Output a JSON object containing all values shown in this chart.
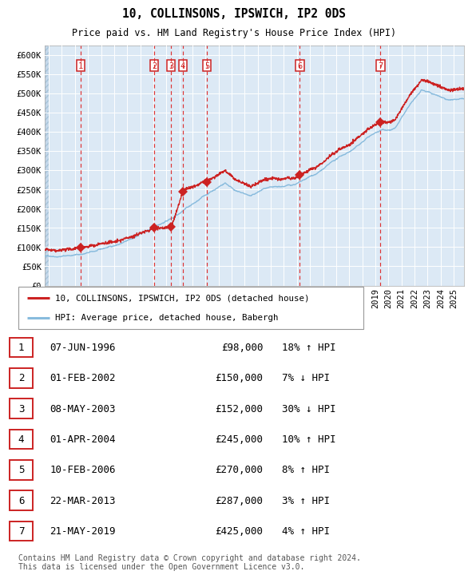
{
  "title": "10, COLLINSONS, IPSWICH, IP2 0DS",
  "subtitle": "Price paid vs. HM Land Registry's House Price Index (HPI)",
  "ylabel_ticks": [
    "£0",
    "£50K",
    "£100K",
    "£150K",
    "£200K",
    "£250K",
    "£300K",
    "£350K",
    "£400K",
    "£450K",
    "£500K",
    "£550K",
    "£600K"
  ],
  "ytick_values": [
    0,
    50000,
    100000,
    150000,
    200000,
    250000,
    300000,
    350000,
    400000,
    450000,
    500000,
    550000,
    600000
  ],
  "ylim": [
    0,
    625000
  ],
  "xlim_start": 1993.7,
  "xlim_end": 2025.8,
  "background_color": "#dce9f5",
  "grid_color": "#ffffff",
  "red_line_color": "#cc2222",
  "blue_line_color": "#88bbdd",
  "dashed_color": "#dd3333",
  "marker_color": "#cc2222",
  "sale_points": [
    {
      "num": 1,
      "year": 1996.44,
      "price": 98000
    },
    {
      "num": 2,
      "year": 2002.08,
      "price": 150000
    },
    {
      "num": 3,
      "year": 2003.36,
      "price": 152000
    },
    {
      "num": 4,
      "year": 2004.25,
      "price": 245000
    },
    {
      "num": 5,
      "year": 2006.11,
      "price": 270000
    },
    {
      "num": 6,
      "year": 2013.22,
      "price": 287000
    },
    {
      "num": 7,
      "year": 2019.39,
      "price": 425000
    }
  ],
  "legend_red_label": "10, COLLINSONS, IPSWICH, IP2 0DS (detached house)",
  "legend_blue_label": "HPI: Average price, detached house, Babergh",
  "table_rows": [
    {
      "num": 1,
      "date": "07-JUN-1996",
      "price": "£98,000",
      "hpi": "18% ↑ HPI"
    },
    {
      "num": 2,
      "date": "01-FEB-2002",
      "price": "£150,000",
      "hpi": "7% ↓ HPI"
    },
    {
      "num": 3,
      "date": "08-MAY-2003",
      "price": "£152,000",
      "hpi": "30% ↓ HPI"
    },
    {
      "num": 4,
      "date": "01-APR-2004",
      "price": "£245,000",
      "hpi": "10% ↑ HPI"
    },
    {
      "num": 5,
      "date": "10-FEB-2006",
      "price": "£270,000",
      "hpi": "8% ↑ HPI"
    },
    {
      "num": 6,
      "date": "22-MAR-2013",
      "price": "£287,000",
      "hpi": "3% ↑ HPI"
    },
    {
      "num": 7,
      "date": "21-MAY-2019",
      "price": "£425,000",
      "hpi": "4% ↑ HPI"
    }
  ],
  "footer": "Contains HM Land Registry data © Crown copyright and database right 2024.\nThis data is licensed under the Open Government Licence v3.0."
}
